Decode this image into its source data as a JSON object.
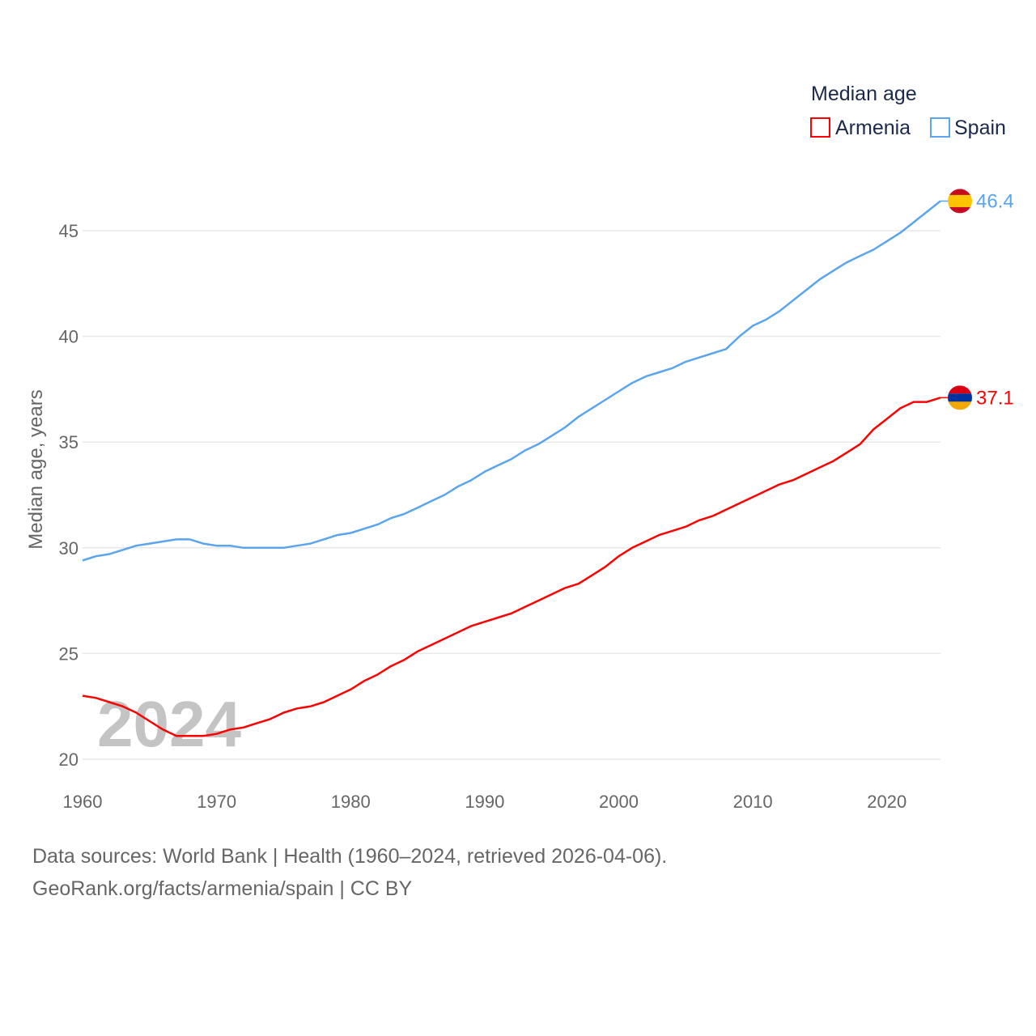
{
  "chart_data": {
    "type": "line",
    "title": "",
    "legend_title": "Median age",
    "legend_placement": "top-right",
    "xlabel": "",
    "ylabel": "Median age, years",
    "xlim": [
      1960,
      2024
    ],
    "ylim": [
      20,
      47
    ],
    "yticks": [
      20,
      25,
      30,
      35,
      40,
      45
    ],
    "xticks": [
      1960,
      1970,
      1980,
      1990,
      2000,
      2010,
      2020
    ],
    "grid": true,
    "watermark": "2024",
    "x": [
      1960,
      1961,
      1962,
      1963,
      1964,
      1965,
      1966,
      1967,
      1968,
      1969,
      1970,
      1971,
      1972,
      1973,
      1974,
      1975,
      1976,
      1977,
      1978,
      1979,
      1980,
      1981,
      1982,
      1983,
      1984,
      1985,
      1986,
      1987,
      1988,
      1989,
      1990,
      1991,
      1992,
      1993,
      1994,
      1995,
      1996,
      1997,
      1998,
      1999,
      2000,
      2001,
      2002,
      2003,
      2004,
      2005,
      2006,
      2007,
      2008,
      2009,
      2010,
      2011,
      2012,
      2013,
      2014,
      2015,
      2016,
      2017,
      2018,
      2019,
      2020,
      2021,
      2022,
      2023,
      2024
    ],
    "series": [
      {
        "name": "Armenia",
        "color": "#ff0000",
        "end_label": "37.1",
        "values": [
          23.0,
          22.9,
          22.7,
          22.5,
          22.2,
          21.8,
          21.4,
          21.1,
          21.1,
          21.1,
          21.2,
          21.4,
          21.5,
          21.7,
          21.9,
          22.2,
          22.4,
          22.5,
          22.7,
          23.0,
          23.3,
          23.7,
          24.0,
          24.4,
          24.7,
          25.1,
          25.4,
          25.7,
          26.0,
          26.3,
          26.5,
          26.7,
          26.9,
          27.2,
          27.5,
          27.8,
          28.1,
          28.3,
          28.7,
          29.1,
          29.6,
          30.0,
          30.3,
          30.6,
          30.8,
          31.0,
          31.3,
          31.5,
          31.8,
          32.1,
          32.4,
          32.7,
          33.0,
          33.2,
          33.5,
          33.8,
          34.1,
          34.5,
          34.9,
          35.6,
          36.1,
          36.6,
          36.9,
          36.9,
          37.1
        ]
      },
      {
        "name": "Spain",
        "color": "#5ba4ee",
        "end_label": "46.4",
        "values": [
          29.4,
          29.6,
          29.7,
          29.9,
          30.1,
          30.2,
          30.3,
          30.4,
          30.4,
          30.2,
          30.1,
          30.1,
          30.0,
          30.0,
          30.0,
          30.0,
          30.1,
          30.2,
          30.4,
          30.6,
          30.7,
          30.9,
          31.1,
          31.4,
          31.6,
          31.9,
          32.2,
          32.5,
          32.9,
          33.2,
          33.6,
          33.9,
          34.2,
          34.6,
          34.9,
          35.3,
          35.7,
          36.2,
          36.6,
          37.0,
          37.4,
          37.8,
          38.1,
          38.3,
          38.5,
          38.8,
          39.0,
          39.2,
          39.4,
          40.0,
          40.5,
          40.8,
          41.2,
          41.7,
          42.2,
          42.7,
          43.1,
          43.5,
          43.8,
          44.1,
          44.5,
          44.9,
          45.4,
          45.9,
          46.4
        ]
      }
    ]
  },
  "footer": {
    "line1": "Data sources: World Bank | Health (1960–2024, retrieved 2026-04-06).",
    "line2": "GeoRank.org/facts/armenia/spain | CC BY"
  }
}
